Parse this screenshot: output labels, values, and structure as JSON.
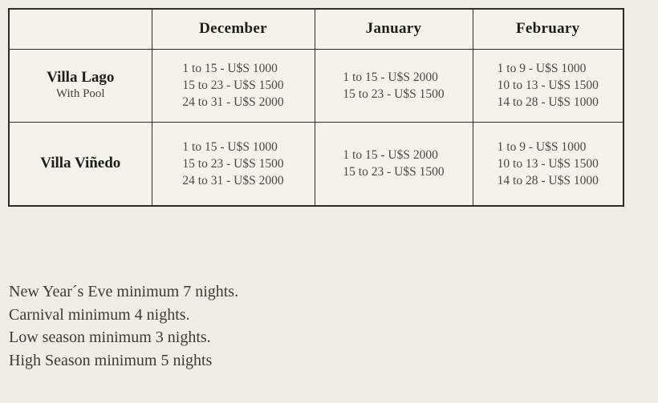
{
  "table": {
    "border_color": "#2e2c28",
    "cell_background": "#f4f2eb",
    "page_background": "#efede6",
    "columns": [
      "",
      "December",
      "January",
      "February"
    ],
    "rows": [
      {
        "name": "Villa Lago",
        "subtitle": "With Pool",
        "december": [
          "1 to 15 - U$S 1000",
          "15 to 23 - U$S 1500",
          "24 to 31 - U$S 2000"
        ],
        "january": [
          "1 to 15 - U$S 2000",
          "15 to 23 - U$S 1500"
        ],
        "february": [
          "1 to 9 - U$S 1000",
          "10 to 13 - U$S 1500",
          "14 to 28 - U$S 1000"
        ]
      },
      {
        "name": "Villa Viñedo",
        "subtitle": "",
        "december": [
          "1 to 15 - U$S 1000",
          "15 to 23 - U$S 1500",
          "24 to 31 - U$S 2000"
        ],
        "january": [
          "1 to 15 - U$S 2000",
          "15 to 23 - U$S 1500"
        ],
        "february": [
          "1 to 9 - U$S 1000",
          "10 to 13 - U$S 1500",
          "14 to 28 - U$S 1000"
        ]
      }
    ]
  },
  "notes": [
    "New Year´s Eve minimum 7 nights.",
    "Carnival minimum 4 nights.",
    "Low season minimum 3 nights.",
    "High Season minimum 5 nights"
  ]
}
